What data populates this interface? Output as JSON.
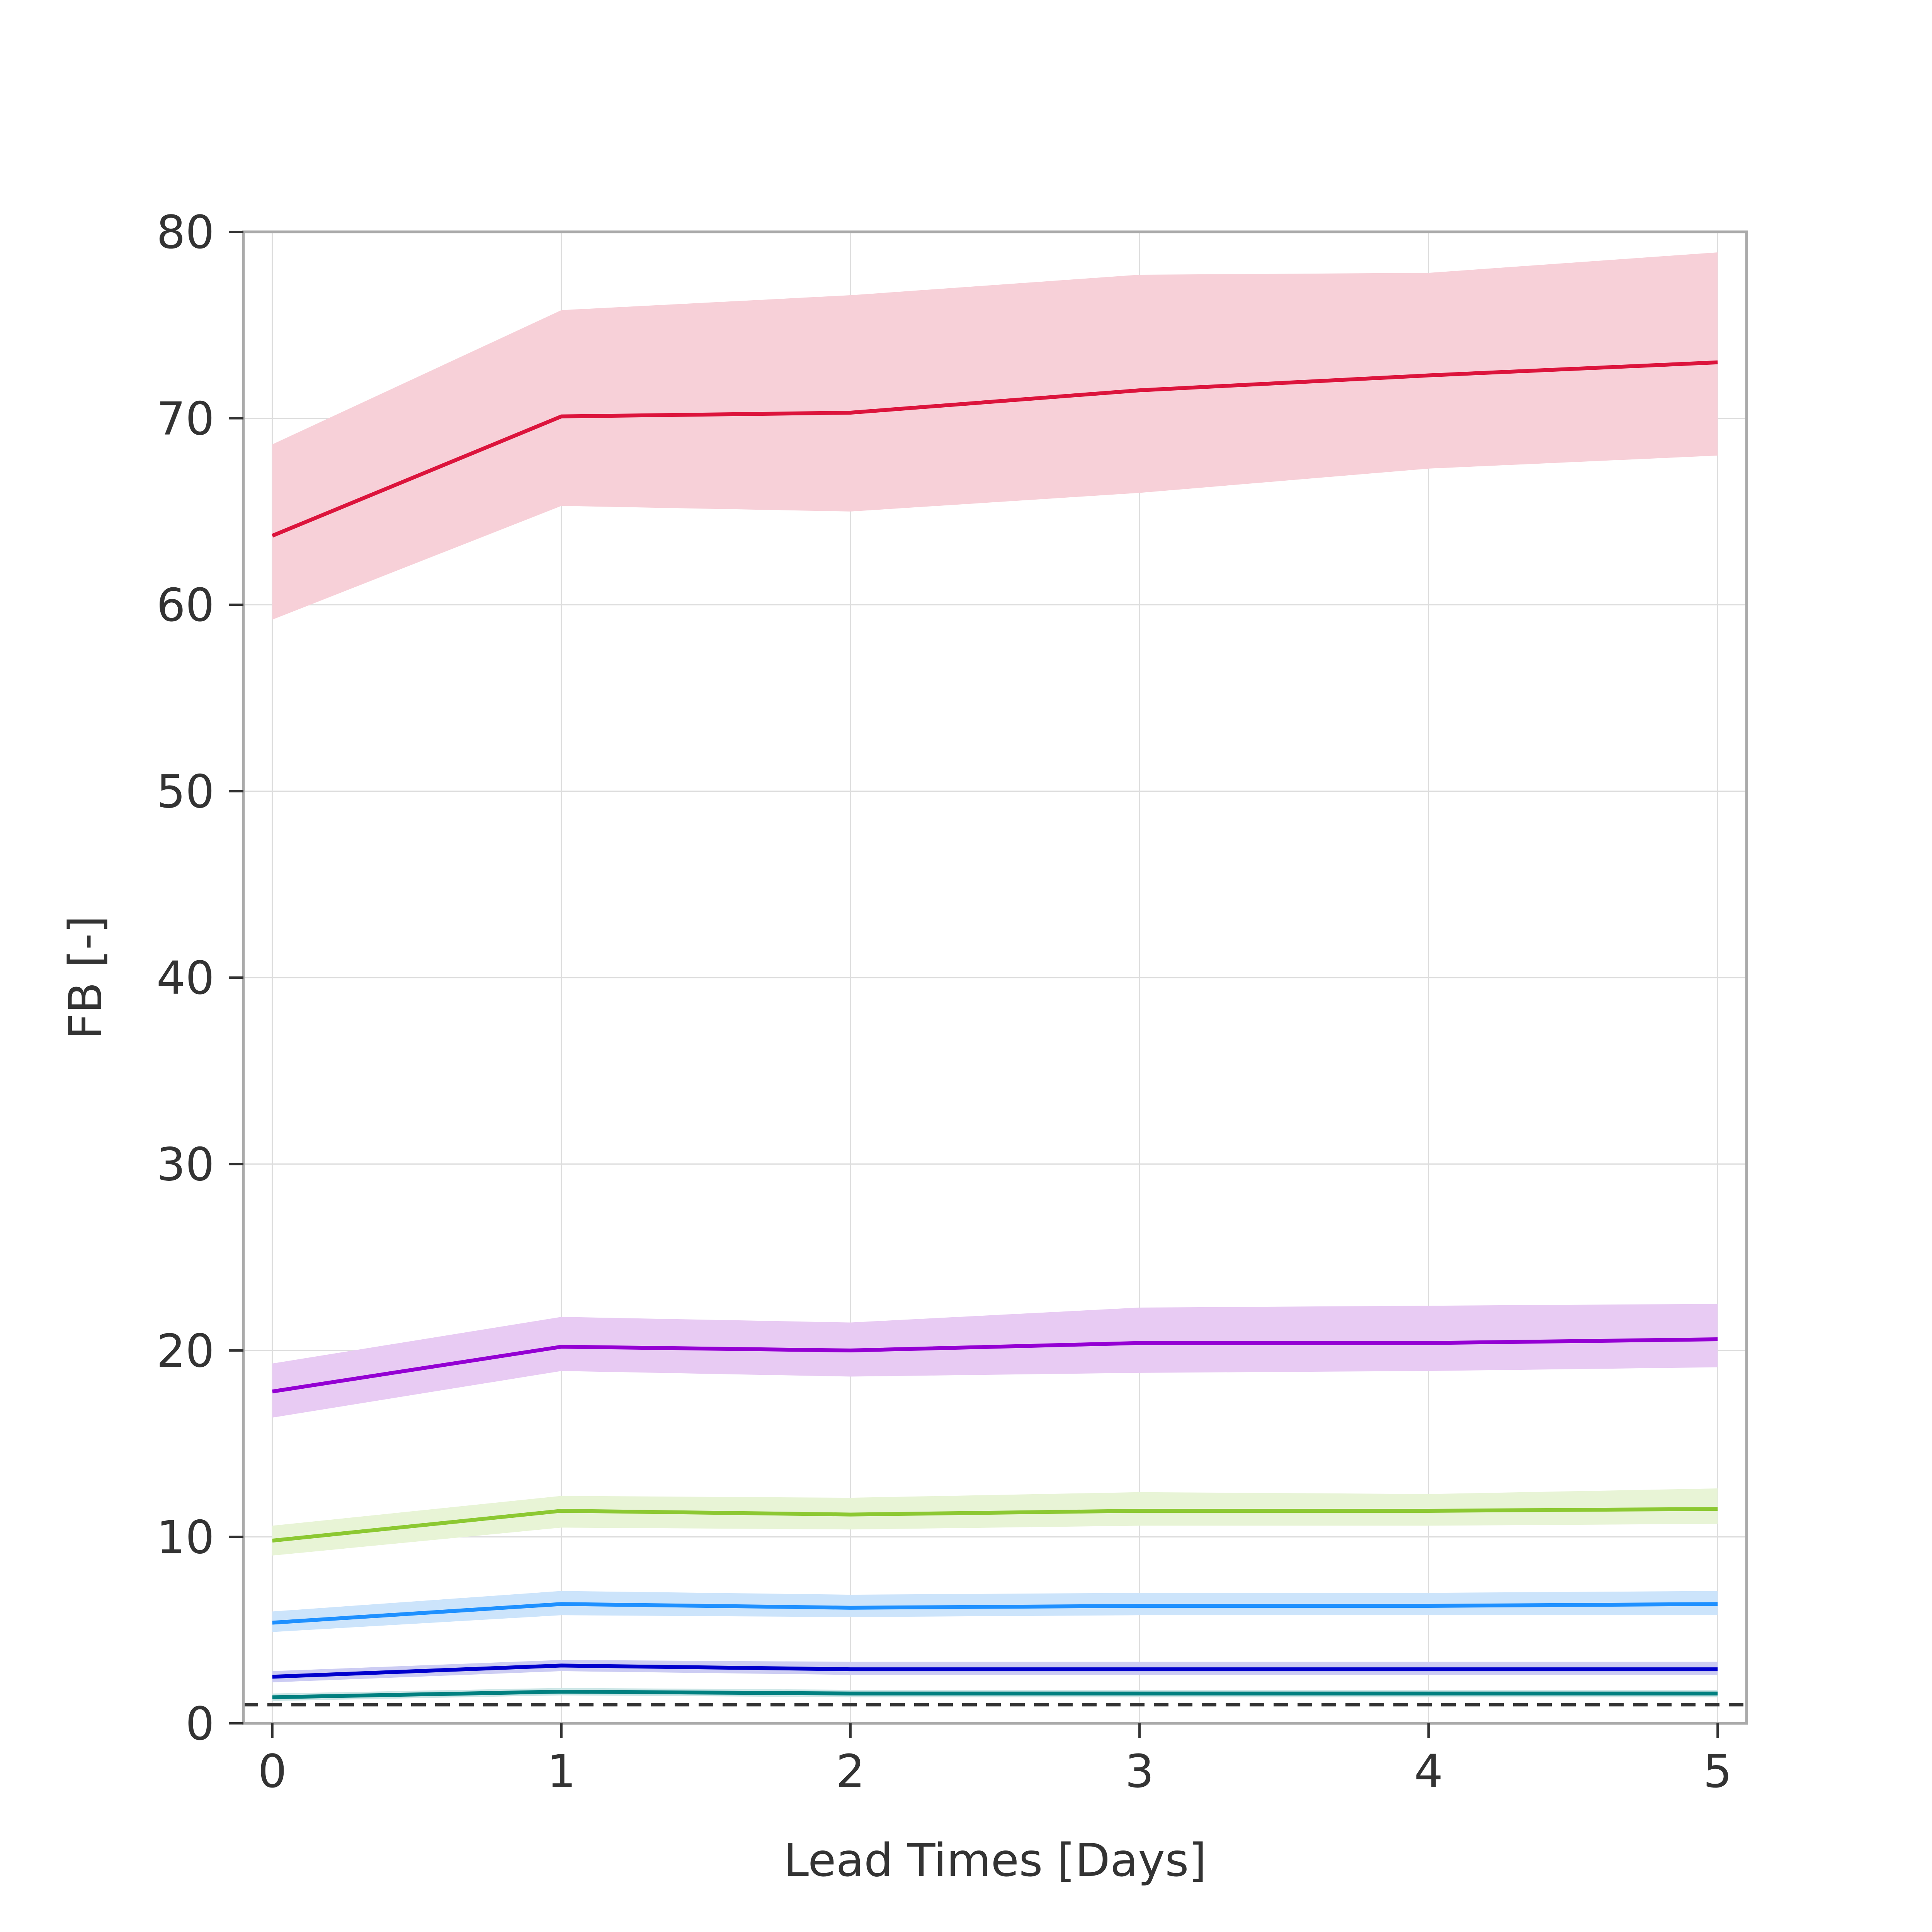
{
  "chart_data": {
    "type": "line",
    "xlabel": "Lead Times [Days]",
    "ylabel": "FB [-]",
    "xlim": [
      -0.1,
      5.1
    ],
    "ylim": [
      0,
      80
    ],
    "x_ticks": [
      "0",
      "1",
      "2",
      "3",
      "4",
      "5"
    ],
    "y_ticks": [
      "0",
      "10",
      "20",
      "30",
      "40",
      "50",
      "60",
      "70",
      "80"
    ],
    "grid": true,
    "legend": "none",
    "x": [
      0,
      1,
      2,
      3,
      4,
      5
    ],
    "reference_line": {
      "y": 1,
      "style": "dashed",
      "color": "#333333"
    },
    "series": [
      {
        "color": "#dc143c",
        "fill": "#f7d0d8",
        "values": [
          63.7,
          70.1,
          70.3,
          71.5,
          72.3,
          73.0
        ],
        "lower": [
          59.2,
          65.3,
          65.0,
          66.0,
          67.3,
          68.0
        ],
        "upper": [
          68.6,
          75.8,
          76.6,
          77.7,
          77.8,
          78.9
        ]
      },
      {
        "color": "#9400d3",
        "fill": "#e8cbf3",
        "values": [
          17.8,
          20.2,
          20.0,
          20.4,
          20.4,
          20.6
        ],
        "lower": [
          16.4,
          18.9,
          18.6,
          18.8,
          18.9,
          19.1
        ],
        "upper": [
          19.3,
          21.8,
          21.5,
          22.3,
          22.4,
          22.5
        ]
      },
      {
        "color": "#8cc832",
        "fill": "#e8f4d6",
        "values": [
          9.8,
          11.4,
          11.2,
          11.4,
          11.4,
          11.5
        ],
        "lower": [
          9.0,
          10.5,
          10.4,
          10.6,
          10.6,
          10.7
        ],
        "upper": [
          10.6,
          12.2,
          12.1,
          12.4,
          12.3,
          12.6
        ]
      },
      {
        "color": "#1e90ff",
        "fill": "#cce4fb",
        "values": [
          5.4,
          6.4,
          6.2,
          6.3,
          6.3,
          6.4
        ],
        "lower": [
          4.9,
          5.8,
          5.7,
          5.8,
          5.8,
          5.8
        ],
        "upper": [
          6.0,
          7.1,
          6.9,
          7.0,
          7.0,
          7.1
        ]
      },
      {
        "color": "#0000cd",
        "fill": "#ccccf3",
        "values": [
          2.5,
          3.1,
          2.9,
          2.9,
          2.9,
          2.9
        ],
        "lower": [
          2.2,
          2.8,
          2.6,
          2.6,
          2.6,
          2.6
        ],
        "upper": [
          2.8,
          3.4,
          3.3,
          3.3,
          3.3,
          3.3
        ]
      },
      {
        "color": "#008080",
        "fill": "#cce6e6",
        "values": [
          1.4,
          1.7,
          1.6,
          1.6,
          1.6,
          1.6
        ],
        "lower": [
          1.2,
          1.5,
          1.4,
          1.4,
          1.4,
          1.4
        ],
        "upper": [
          1.6,
          1.9,
          1.8,
          1.8,
          1.8,
          1.8
        ]
      }
    ]
  }
}
